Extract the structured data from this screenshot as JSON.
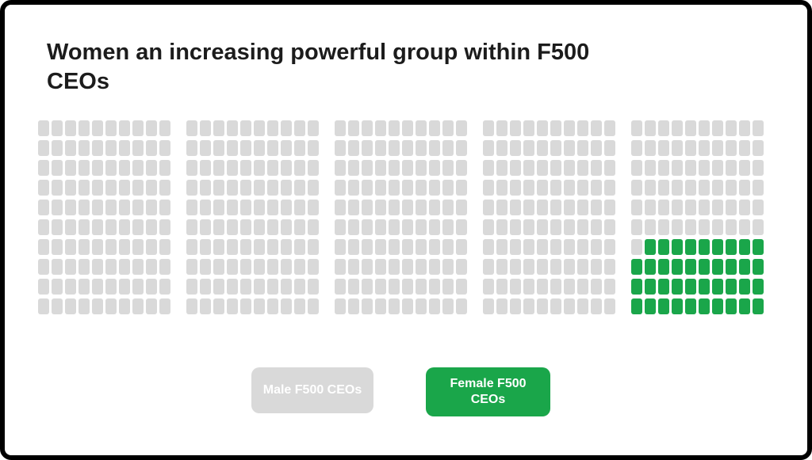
{
  "header": {
    "title": "Women an increasing powerful group within F500 CEOs",
    "title_lines": [
      "Women an increasing powerful group within F500",
      "CEOs"
    ]
  },
  "legend": {
    "male_label": "Male F500 CEOs",
    "female_label": "Female F500 CEOs"
  },
  "colors": {
    "male": "#d9d9d9",
    "female": "#1aa64a",
    "title_text": "#1c1c1c",
    "button_text": "#ffffff",
    "card_border": "#000000",
    "card_background": "#ffffff"
  },
  "chart_data": {
    "type": "waffle",
    "title": "Women an increasing powerful group within F500 CEOs",
    "rows": 10,
    "cols": 50,
    "group_size": 10,
    "total_units": 500,
    "series": [
      {
        "name": "Male F500 CEOs",
        "value": 461,
        "color": "#d9d9d9"
      },
      {
        "name": "Female F500 CEOs",
        "value": 39,
        "color": "#1aa64a"
      }
    ],
    "female_trailing_per_row": [
      0,
      0,
      0,
      0,
      0,
      0,
      9,
      10,
      10,
      10
    ],
    "fill_direction": "bottom-right",
    "legend_position": "bottom",
    "grid": "off",
    "axes": "none"
  }
}
